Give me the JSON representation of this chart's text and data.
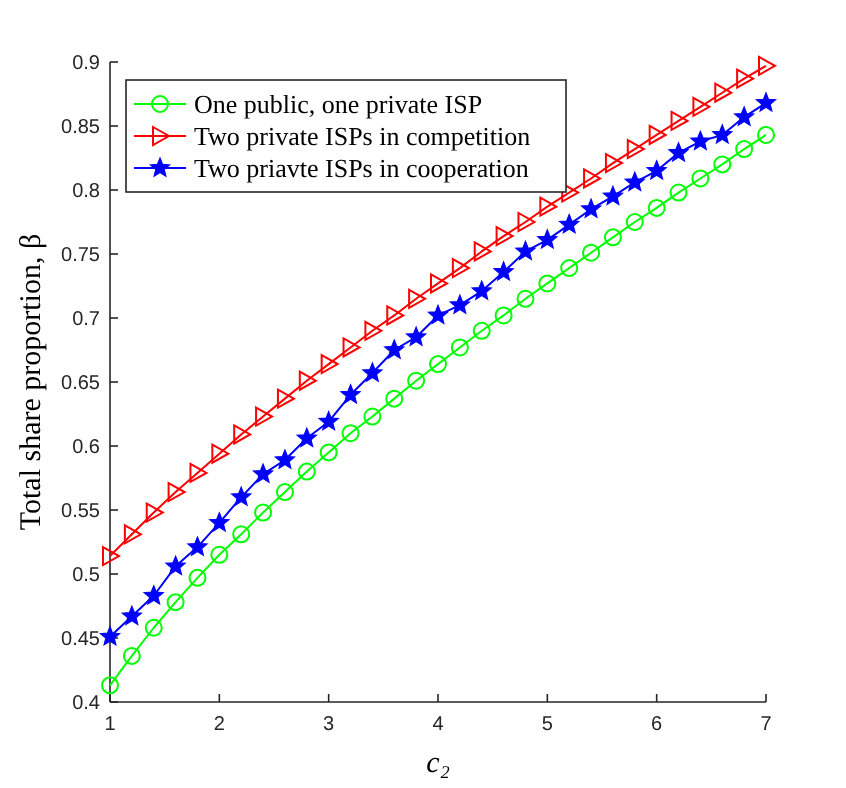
{
  "chart_data": {
    "type": "line",
    "xlabel": "c₂",
    "ylabel": "Total share proportion, β",
    "x": [
      1,
      1.2,
      1.4,
      1.6,
      1.8,
      2,
      2.2,
      2.4,
      2.6,
      2.8,
      3,
      3.2,
      3.4,
      3.6,
      3.8,
      4,
      4.2,
      4.4,
      4.6,
      4.8,
      5,
      5.2,
      5.4,
      5.6,
      5.8,
      6,
      6.2,
      6.4,
      6.6,
      6.8,
      7
    ],
    "xlim": [
      1,
      7
    ],
    "xticks": [
      1,
      2,
      3,
      4,
      5,
      6,
      7
    ],
    "ylim": [
      0.4,
      0.9
    ],
    "yticks": [
      0.4,
      0.45,
      0.5,
      0.55,
      0.6,
      0.65,
      0.7,
      0.75,
      0.8,
      0.85,
      0.9
    ],
    "grid": false,
    "legend": "top left",
    "line_style": "solid",
    "series": [
      {
        "name": "One public, one private ISP",
        "color": "#00ff00",
        "marker": "circle",
        "values": [
          0.413,
          0.436,
          0.458,
          0.478,
          0.497,
          0.515,
          0.531,
          0.548,
          0.564,
          0.58,
          0.595,
          0.61,
          0.623,
          0.637,
          0.651,
          0.664,
          0.677,
          0.69,
          0.702,
          0.715,
          0.727,
          0.739,
          0.751,
          0.763,
          0.775,
          0.786,
          0.798,
          0.809,
          0.82,
          0.832,
          0.843
        ]
      },
      {
        "name": "Two private ISPs in competition",
        "color": "#ff0000",
        "marker": "triangle",
        "values": [
          0.514,
          0.531,
          0.548,
          0.564,
          0.579,
          0.594,
          0.609,
          0.623,
          0.637,
          0.651,
          0.664,
          0.677,
          0.69,
          0.702,
          0.715,
          0.727,
          0.739,
          0.752,
          0.764,
          0.775,
          0.787,
          0.798,
          0.809,
          0.821,
          0.832,
          0.843,
          0.854,
          0.865,
          0.876,
          0.887,
          0.897
        ]
      },
      {
        "name": "Two priavte ISPs in cooperation",
        "color": "#0000ff",
        "marker": "star",
        "values": [
          0.451,
          0.467,
          0.483,
          0.506,
          0.521,
          0.54,
          0.56,
          0.578,
          0.589,
          0.606,
          0.619,
          0.64,
          0.657,
          0.675,
          0.685,
          0.702,
          0.71,
          0.721,
          0.736,
          0.752,
          0.761,
          0.773,
          0.785,
          0.795,
          0.806,
          0.815,
          0.829,
          0.838,
          0.843,
          0.857,
          0.868
        ]
      }
    ]
  }
}
